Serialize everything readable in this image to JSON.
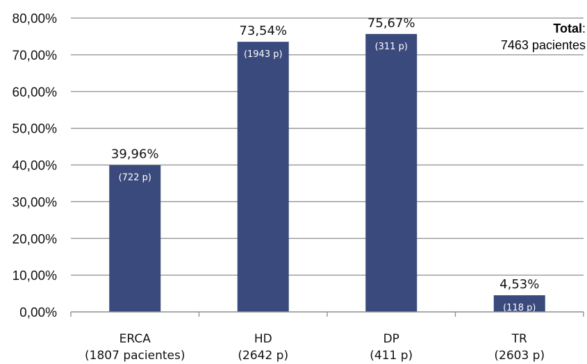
{
  "chart_data": {
    "type": "bar",
    "categories": [
      "ERCA",
      "HD",
      "DP",
      "TR"
    ],
    "category_sublabels": [
      "(1807 pacientes)",
      "(2642 p)",
      "(411 p)",
      "(2603 p)"
    ],
    "values": [
      39.96,
      73.54,
      75.67,
      4.53
    ],
    "value_labels": [
      "39,96%",
      "73,54%",
      "75,67%",
      "4,53%"
    ],
    "inner_labels": [
      "(722 p)",
      "(1943 p)",
      "(311 p)",
      "(118 p)"
    ],
    "y_ticks": [
      "0,00%",
      "10,00%",
      "20,00%",
      "30,00%",
      "40,00%",
      "50,00%",
      "60,00%",
      "70,00%",
      "80,00%"
    ],
    "ylim": [
      0,
      80
    ],
    "grid": true,
    "bar_color": "#3b4a7c",
    "grid_color": "#8c8c8c",
    "annotation": {
      "total_label": "Total",
      "total_colon": ":",
      "total_value": "7463 pacientes"
    }
  }
}
